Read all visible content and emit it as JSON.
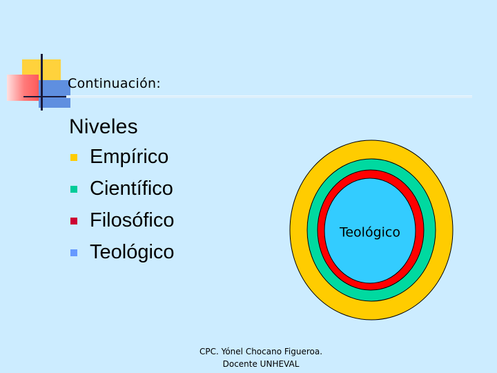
{
  "slide": {
    "title": "Continuación:",
    "heading": "Niveles",
    "levels": [
      {
        "label": "Empírico",
        "bullet_color": "#FFCC00"
      },
      {
        "label": "Científico",
        "bullet_color": "#00CC99"
      },
      {
        "label": "Filosófico",
        "bullet_color": "#CC0033"
      },
      {
        "label": "Teológico",
        "bullet_color": "#6699FF"
      }
    ],
    "diagram": {
      "center_label": "Teológico",
      "ring_colors": {
        "outer": "#FFCC00",
        "second": "#00D9A0",
        "third": "#FF0000",
        "inner": "#33CCFF"
      }
    },
    "footer": {
      "line1": "CPC. Yónel Chocano Figueroa.",
      "line2": "Docente UNHEVAL"
    }
  }
}
